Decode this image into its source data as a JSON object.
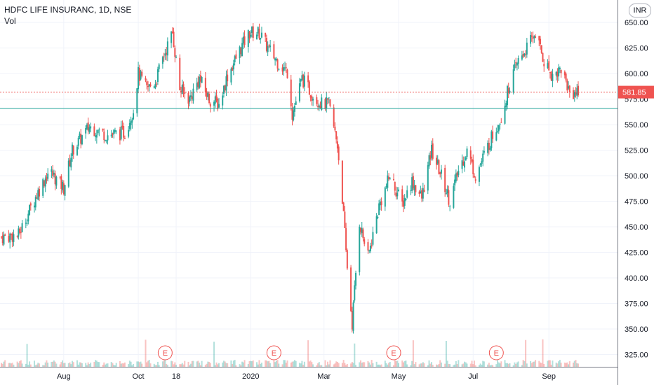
{
  "header": {
    "symbol": "HDFC LIFE INSURANC, 1D, NSE",
    "volume_label": "Vol"
  },
  "currency_button": "INR",
  "colors": {
    "up": "#26a69a",
    "down": "#ef5350",
    "support_line": "#26a69a",
    "price_line": "#ef5350",
    "grid": "#f0f3fa",
    "axis_text": "#131722"
  },
  "chart_data": {
    "type": "candlestick",
    "title": "HDFC LIFE INSURANC, 1D, NSE",
    "yaxis": {
      "ticks": [
        "650.00",
        "625.00",
        "600.00",
        "575.00",
        "550.00",
        "525.00",
        "500.00",
        "475.00",
        "450.00",
        "425.00",
        "400.00",
        "375.00",
        "350.00",
        "325.00"
      ],
      "tick_values": [
        650,
        625,
        600,
        575,
        550,
        525,
        500,
        475,
        450,
        425,
        400,
        375,
        350,
        325
      ],
      "range": [
        313,
        672
      ]
    },
    "xaxis": {
      "ticks": [
        "Aug",
        "Oct",
        "18",
        "2020",
        "Mar",
        "May",
        "Jul",
        "Sep"
      ],
      "tick_dates": [
        "2019-08-01",
        "2019-10-01",
        "2019-11-01",
        "2020-01-01",
        "2020-03-01",
        "2020-05-01",
        "2020-07-01",
        "2020-09-01"
      ],
      "range": [
        "2019-06-11",
        "2020-09-25"
      ]
    },
    "last_price": {
      "label": "581.85",
      "value": 581.85
    },
    "horizontal_line": {
      "value": 566
    },
    "earnings_markers": [
      {
        "label": "E",
        "date": "2019-10-23"
      },
      {
        "label": "E",
        "date": "2020-01-20"
      },
      {
        "label": "E",
        "date": "2020-04-27"
      },
      {
        "label": "E",
        "date": "2020-07-20"
      }
    ],
    "close_path": [
      [
        "2019-06-11",
        440
      ],
      [
        "2019-06-25",
        442
      ],
      [
        "2019-07-10",
        482
      ],
      [
        "2019-07-20",
        505
      ],
      [
        "2019-08-01",
        488
      ],
      [
        "2019-08-08",
        525
      ],
      [
        "2019-08-22",
        548
      ],
      [
        "2019-09-05",
        540
      ],
      [
        "2019-09-20",
        542
      ],
      [
        "2019-09-27",
        565
      ],
      [
        "2019-10-01",
        600
      ],
      [
        "2019-10-08",
        585
      ],
      [
        "2019-10-15",
        592
      ],
      [
        "2019-10-22",
        618
      ],
      [
        "2019-10-29",
        640
      ],
      [
        "2019-11-04",
        585
      ],
      [
        "2019-11-12",
        575
      ],
      [
        "2019-11-20",
        595
      ],
      [
        "2019-11-28",
        575
      ],
      [
        "2019-12-06",
        570
      ],
      [
        "2019-12-13",
        598
      ],
      [
        "2019-12-24",
        625
      ],
      [
        "2019-12-31",
        640
      ],
      [
        "2020-01-08",
        640
      ],
      [
        "2020-01-15",
        625
      ],
      [
        "2020-01-24",
        610
      ],
      [
        "2020-02-01",
        600
      ],
      [
        "2020-02-04",
        560
      ],
      [
        "2020-02-12",
        595
      ],
      [
        "2020-02-20",
        580
      ],
      [
        "2020-02-28",
        570
      ],
      [
        "2020-03-05",
        570
      ],
      [
        "2020-03-12",
        530
      ],
      [
        "2020-03-16",
        478
      ],
      [
        "2020-03-19",
        425
      ],
      [
        "2020-03-24",
        355
      ],
      [
        "2020-03-30",
        455
      ],
      [
        "2020-04-06",
        420
      ],
      [
        "2020-04-15",
        470
      ],
      [
        "2020-04-24",
        500
      ],
      [
        "2020-05-04",
        472
      ],
      [
        "2020-05-12",
        495
      ],
      [
        "2020-05-20",
        478
      ],
      [
        "2020-05-28",
        525
      ],
      [
        "2020-06-05",
        500
      ],
      [
        "2020-06-12",
        475
      ],
      [
        "2020-06-19",
        505
      ],
      [
        "2020-06-26",
        525
      ],
      [
        "2020-07-03",
        500
      ],
      [
        "2020-07-10",
        520
      ],
      [
        "2020-07-17",
        540
      ],
      [
        "2020-07-24",
        558
      ],
      [
        "2020-07-31",
        590
      ],
      [
        "2020-08-07",
        612
      ],
      [
        "2020-08-14",
        625
      ],
      [
        "2020-08-21",
        640
      ],
      [
        "2020-08-28",
        612
      ],
      [
        "2020-09-04",
        598
      ],
      [
        "2020-09-11",
        605
      ],
      [
        "2020-09-18",
        582
      ],
      [
        "2020-09-25",
        581.85
      ]
    ]
  }
}
